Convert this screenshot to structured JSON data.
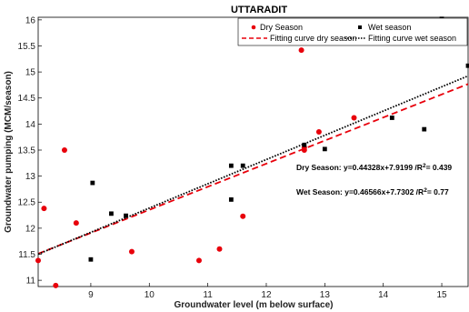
{
  "chart_data": {
    "type": "scatter",
    "title": "UTTARADIT",
    "xlabel": "Groundwater level (m below surface)",
    "ylabel": "Groundwater pumping (MCM/season)",
    "xlim": [
      8.1,
      15.45
    ],
    "ylim": [
      10.88,
      16.05
    ],
    "xticks": [
      "9",
      "10",
      "11",
      "12",
      "13",
      "14",
      "15"
    ],
    "yticks": [
      "11",
      "11.5",
      "12",
      "12.5",
      "13",
      "13.5",
      "14",
      "14.5",
      "15",
      "15.5",
      "16"
    ],
    "grid": false,
    "legend_position": "top-right",
    "series": [
      {
        "name": "Dry Season",
        "marker": "circle",
        "color": "#e8000b",
        "points": [
          [
            8.1,
            11.38
          ],
          [
            8.2,
            12.38
          ],
          [
            8.4,
            10.9
          ],
          [
            8.55,
            13.5
          ],
          [
            8.75,
            12.1
          ],
          [
            9.7,
            11.55
          ],
          [
            10.85,
            11.38
          ],
          [
            11.2,
            11.6
          ],
          [
            11.6,
            12.23
          ],
          [
            12.6,
            15.42
          ],
          [
            12.65,
            13.55
          ],
          [
            12.65,
            13.5
          ],
          [
            12.9,
            13.85
          ],
          [
            13.5,
            14.12
          ]
        ]
      },
      {
        "name": "Wet season",
        "marker": "square",
        "color": "#000000",
        "points": [
          [
            9.0,
            11.4
          ],
          [
            9.03,
            12.87
          ],
          [
            9.35,
            12.28
          ],
          [
            9.6,
            12.24
          ],
          [
            11.4,
            13.2
          ],
          [
            11.4,
            12.55
          ],
          [
            11.6,
            13.2
          ],
          [
            12.65,
            13.6
          ],
          [
            13.0,
            13.52
          ],
          [
            14.15,
            14.12
          ],
          [
            14.7,
            13.9
          ],
          [
            15.0,
            16.02
          ],
          [
            15.45,
            15.12
          ]
        ]
      }
    ],
    "fits": [
      {
        "name": "Fitting curve dry season",
        "slope": 0.44328,
        "intercept": 7.9199,
        "color": "#e8000b",
        "style": "dashed"
      },
      {
        "name": "Fitting curve wet season",
        "slope": 0.46566,
        "intercept": 7.7302,
        "color": "#000000",
        "style": "dotted"
      }
    ],
    "annotations": [
      "Dry Season: y=0.44328x+7.9199 /R",
      "2",
      "= 0.439",
      "Wet Season: y=0.46566x+7.7302 /R",
      "2",
      "= 0.77"
    ]
  }
}
